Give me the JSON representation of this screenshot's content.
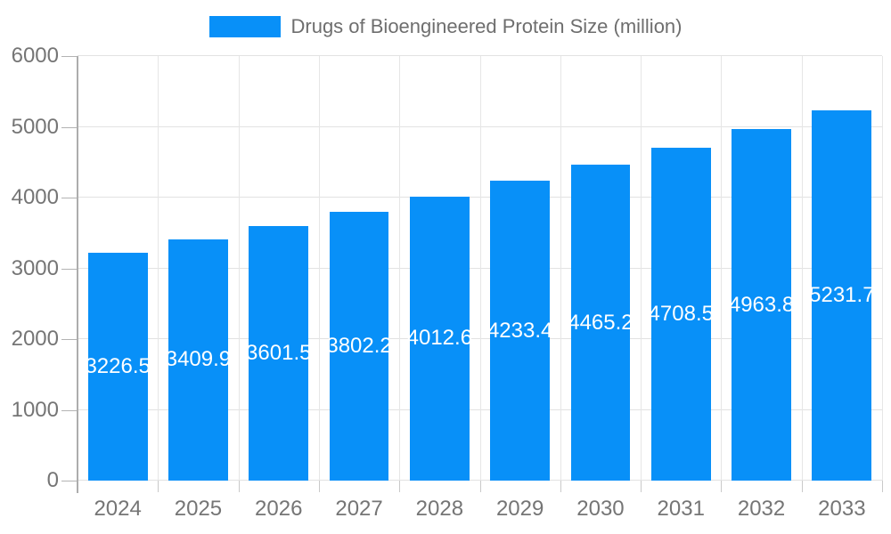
{
  "legend": {
    "label": "Drugs of Bioengineered Protein Size (million)"
  },
  "chart_data": {
    "type": "bar",
    "title": "Drugs of Bioengineered Protein Size (million)",
    "categories": [
      "2024",
      "2025",
      "2026",
      "2027",
      "2028",
      "2029",
      "2030",
      "2031",
      "2032",
      "2033"
    ],
    "values": [
      3226.5,
      3409.9,
      3601.5,
      3802.2,
      4012.6,
      4233.4,
      4465.2,
      4708.5,
      4963.8,
      5231.7
    ],
    "value_labels": [
      "3226.5",
      "3409.9",
      "3601.5",
      "3802.2",
      "4012.6",
      "4233.4",
      "4465.2",
      "4708.5",
      "4963.8",
      "5231.7"
    ],
    "xlabel": "",
    "ylabel": "",
    "ylim": [
      0,
      6000
    ],
    "y_ticks": [
      "0",
      "1000",
      "2000",
      "3000",
      "4000",
      "5000",
      "6000"
    ],
    "grid": "on",
    "legend_position": "top-center",
    "colors": {
      "bar": "#0890f8",
      "axis_text": "#757575",
      "title_text": "#6e6e6e",
      "grid_line": "#e2e2e2",
      "axis_line": "#adadad",
      "value_text": "#ffffff",
      "background": "#ffffff"
    }
  }
}
